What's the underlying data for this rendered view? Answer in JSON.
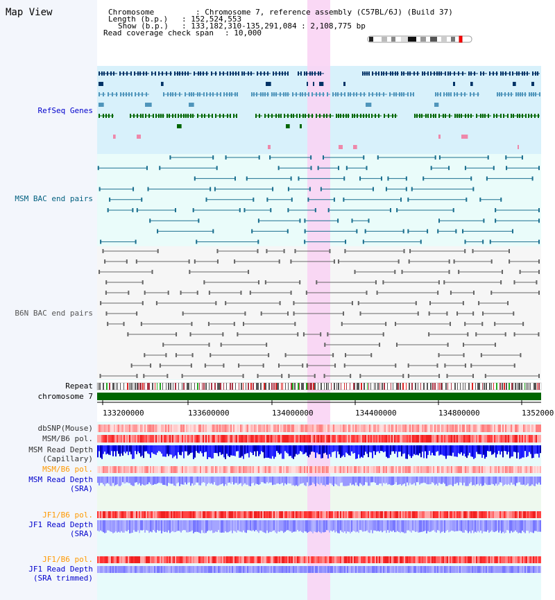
{
  "page": {
    "title": "Map View"
  },
  "info": {
    "chromosome_key": "Chromosome",
    "chromosome_val": ": Chromosome 7, reference assembly (C57BL/6J) (Build 37)",
    "length_key": "Length (b.p.)",
    "length_val": ": 152,524,553",
    "show_key": "Show (b.p.)",
    "show_val": ": 133,182,310-135,291,084 : 2,108,775 bp",
    "coverage_key": "Read coverage check span",
    "coverage_val": ": 10,000"
  },
  "axis": {
    "ticks": [
      "133200000",
      "133600000",
      "134000000",
      "134400000",
      "134800000",
      "1352000"
    ]
  },
  "tracks": {
    "refseq": "RefSeq Genes",
    "msm_bac": "MSM BAC end pairs",
    "b6n_bac": "B6N BAC end pairs",
    "repeat": "Repeat",
    "chromosome": "chromosome 7",
    "dbsnp": "dbSNP(Mouse)",
    "msm_pol": "MSM/B6 pol.",
    "msm_depth_cap_1": "MSM Read Depth",
    "msm_depth_cap_2": "(Capillary)",
    "msm_pol2": "MSM/B6 pol.",
    "msm_depth_sra_1": "MSM Read Depth",
    "msm_depth_sra_2": "(SRA)",
    "jf1_pol": "JF1/B6 pol.",
    "jf1_depth_1": "JF1 Read Depth",
    "jf1_depth_2": "(SRA)",
    "jf1_pol2": "JF1/B6 pol.",
    "jf1_trim_1": "JF1 Read Depth",
    "jf1_trim_2": "(SRA trimmed)"
  },
  "colors": {
    "label_blue": "#0000cc",
    "label_teal": "#005f7f",
    "label_gray": "#555555",
    "label_orange": "#ff9900",
    "highlight": "#f9d4f4",
    "refseq_bg": "#d8f1fb",
    "gene_navy": "#003366",
    "gene_blue": "#4f95bb",
    "gene_green": "#006600",
    "chromosome_bar": "#006600"
  }
}
